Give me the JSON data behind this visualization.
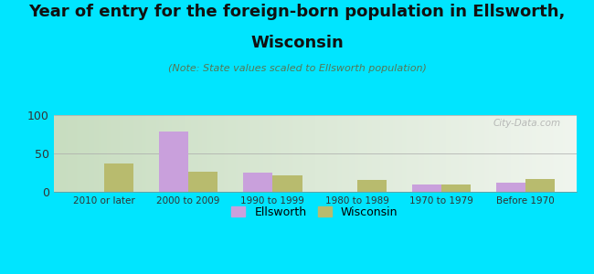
{
  "categories": [
    "2010 or later",
    "2000 to 2009",
    "1990 to 1999",
    "1980 to 1989",
    "1970 to 1979",
    "Before 1970"
  ],
  "ellsworth_values": [
    0,
    79,
    25,
    0,
    10,
    12
  ],
  "wisconsin_values": [
    37,
    26,
    22,
    16,
    10,
    17
  ],
  "ellsworth_color": "#c9a0dc",
  "wisconsin_color": "#b8bb6e",
  "title_line1": "Year of entry for the foreign-born population in Ellsworth,",
  "title_line2": "Wisconsin",
  "subtitle": "(Note: State values scaled to Ellsworth population)",
  "ylim": [
    0,
    100
  ],
  "yticks": [
    0,
    50,
    100
  ],
  "background_color": "#00e5ff",
  "plot_bg_left": "#c8ddc0",
  "plot_bg_right": "#f0f5ee",
  "title_fontsize": 13,
  "subtitle_fontsize": 8,
  "bar_width": 0.35,
  "watermark": "City-Data.com",
  "legend_ellsworth": "Ellsworth",
  "legend_wisconsin": "Wisconsin"
}
